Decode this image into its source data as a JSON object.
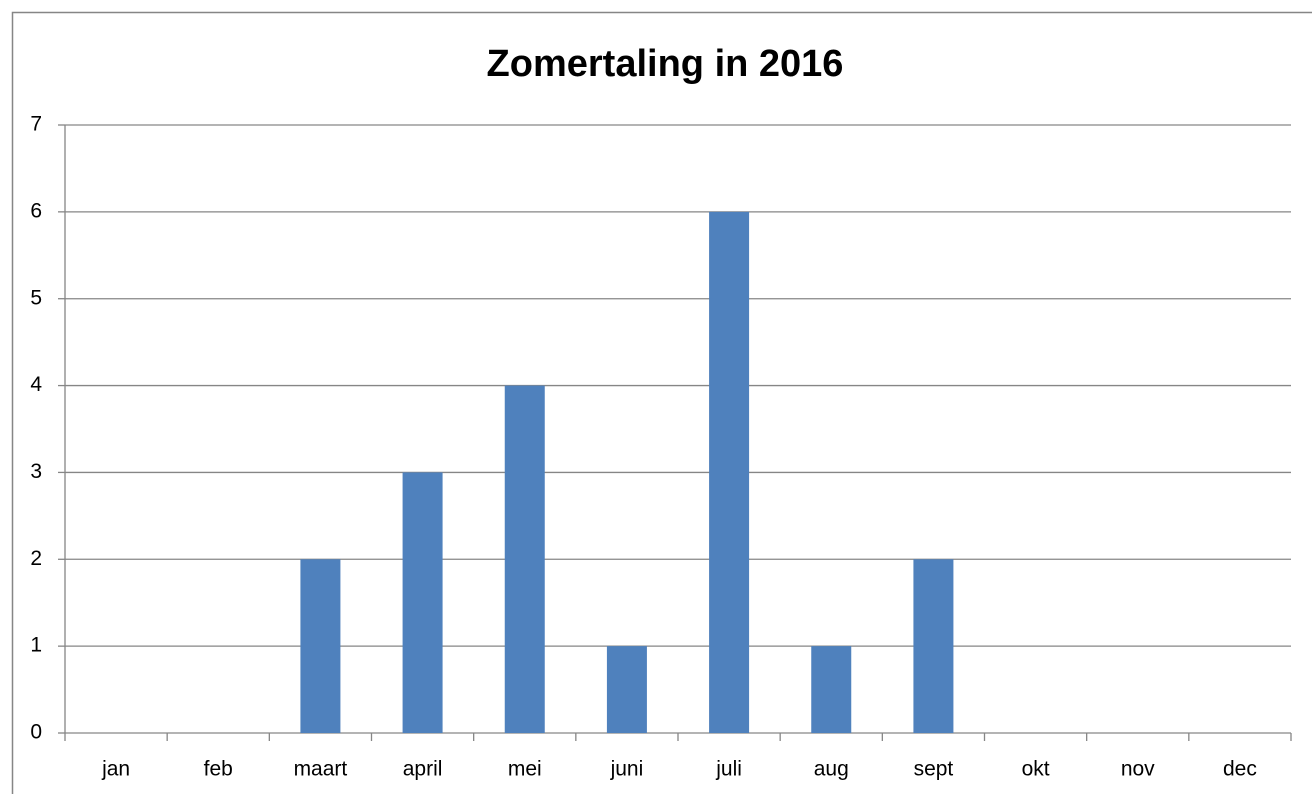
{
  "chart_data": {
    "type": "bar",
    "title": "Zomertaling in 2016",
    "categories": [
      "jan",
      "feb",
      "maart",
      "april",
      "mei",
      "juni",
      "juli",
      "aug",
      "sept",
      "okt",
      "nov",
      "dec"
    ],
    "values": [
      0,
      0,
      2,
      3,
      4,
      1,
      6,
      1,
      2,
      0,
      0,
      0
    ],
    "color": "#4f81bd",
    "ylim": [
      0,
      7
    ],
    "yticks": [
      0,
      1,
      2,
      3,
      4,
      5,
      6,
      7
    ],
    "grid": true
  }
}
